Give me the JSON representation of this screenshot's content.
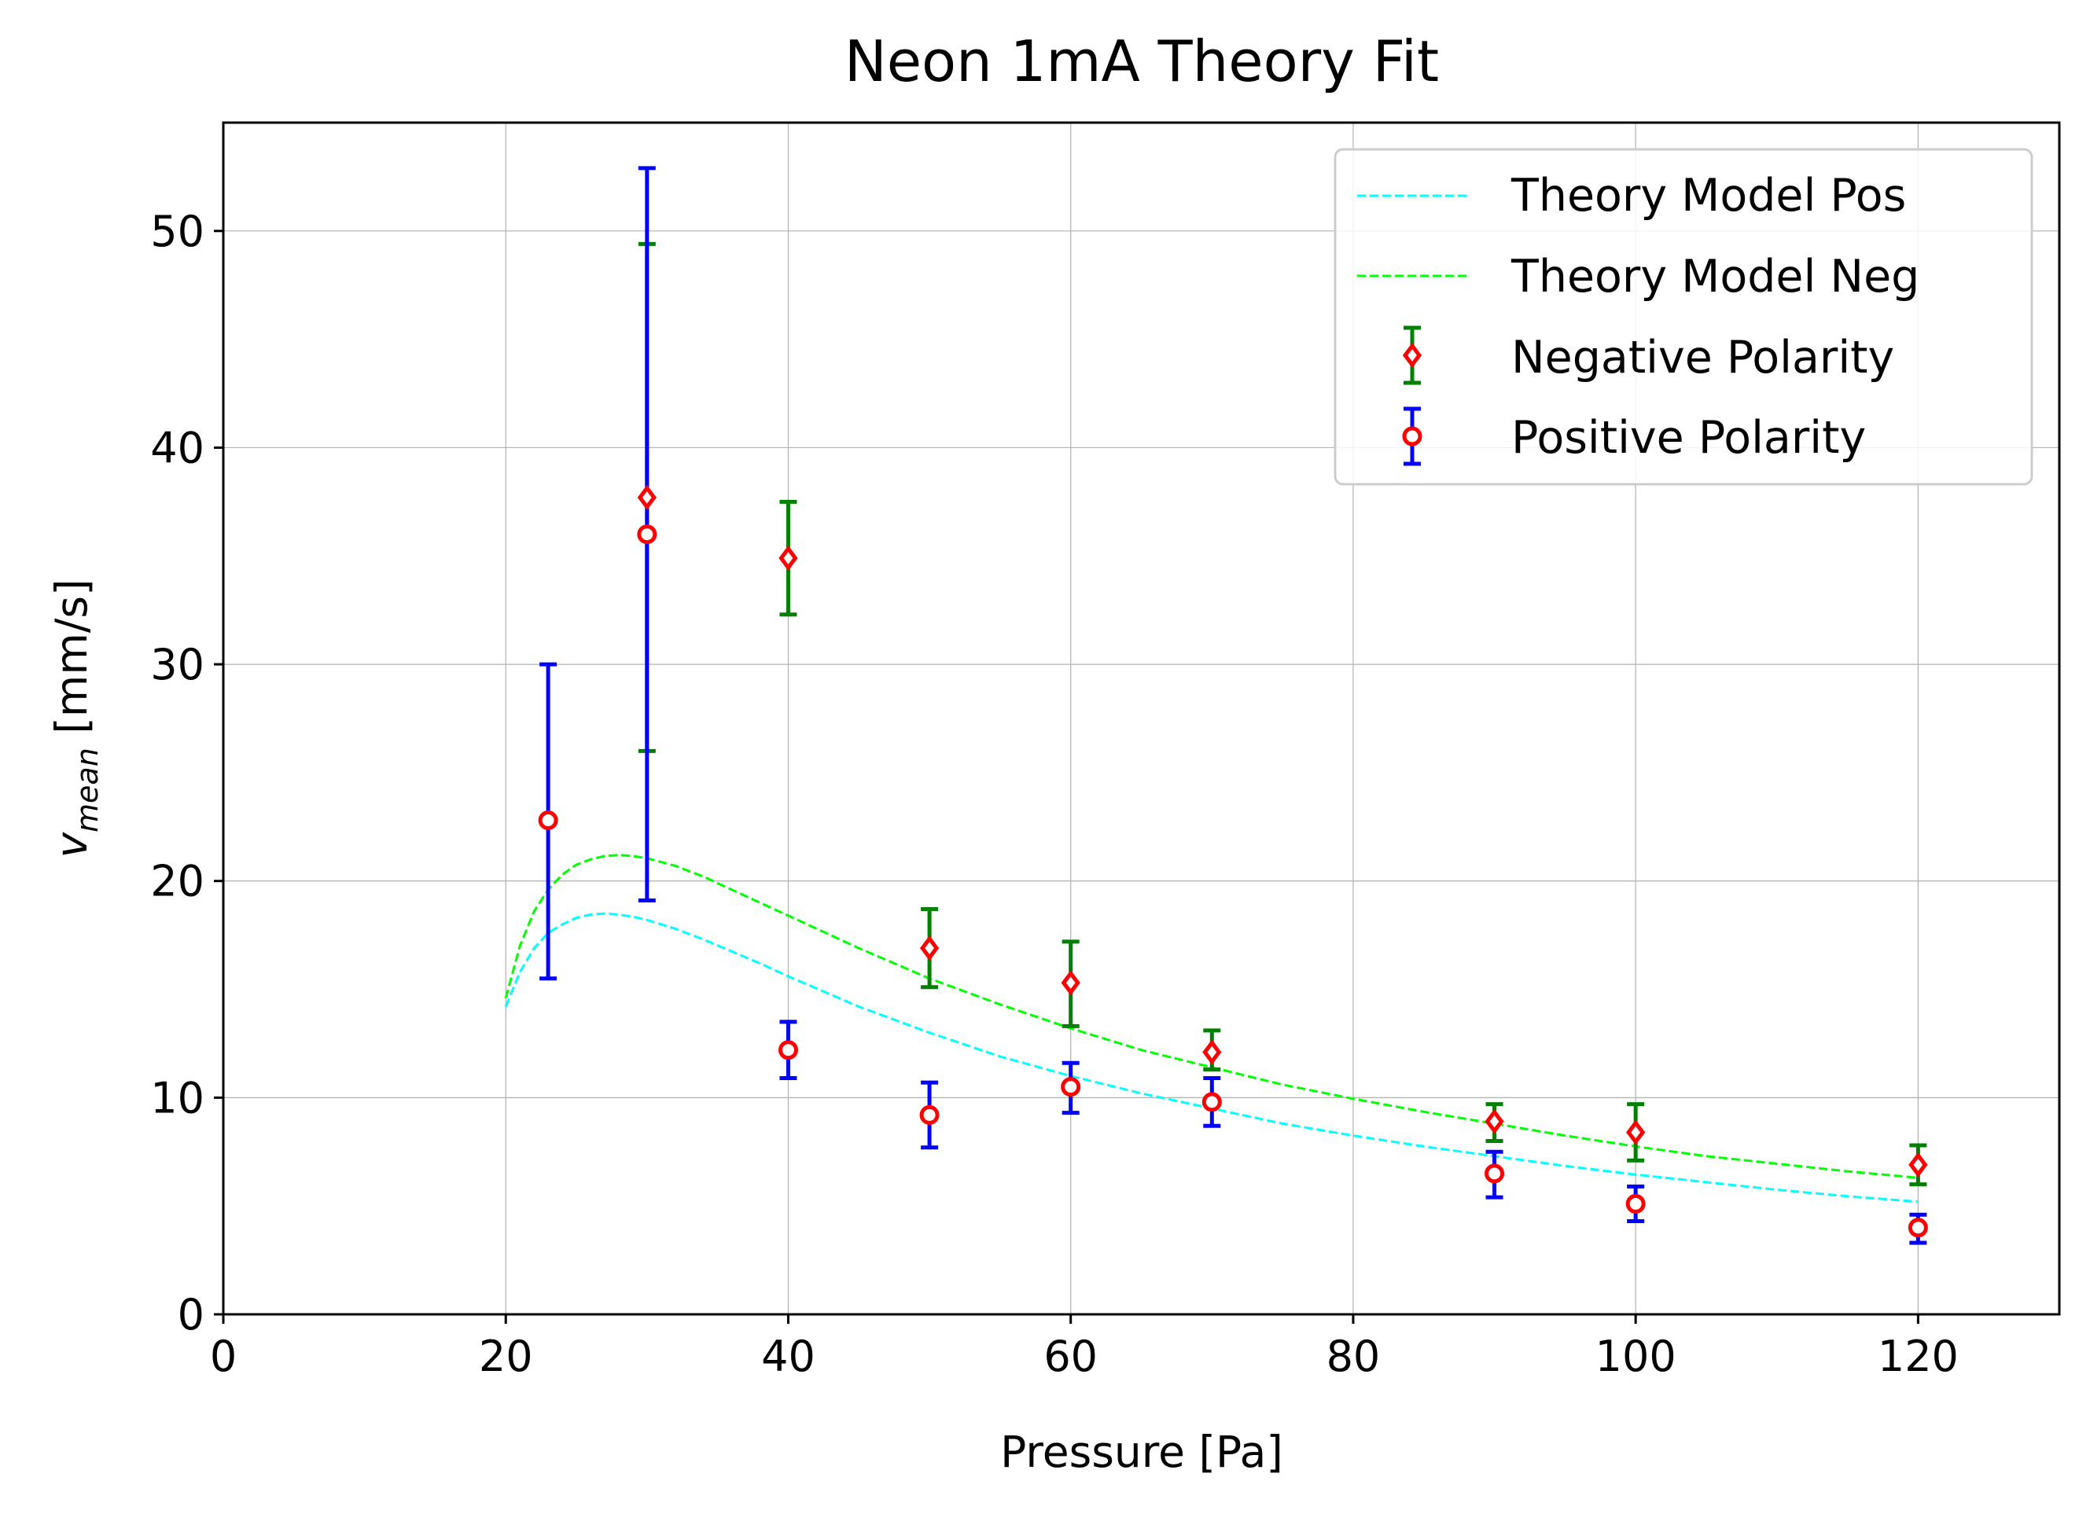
{
  "chart_data": {
    "type": "scatter",
    "title": "Neon 1mA Theory Fit",
    "xlabel": "Pressure [Pa]",
    "ylabel_main": "v",
    "ylabel_sub": "mean",
    "ylabel_unit": " [mm/s]",
    "xlim": [
      0,
      130
    ],
    "ylim": [
      0,
      55
    ],
    "xticks": [
      0,
      20,
      40,
      60,
      80,
      100,
      120
    ],
    "yticks": [
      0,
      10,
      20,
      30,
      40,
      50
    ],
    "grid": true,
    "legend_position": "top-right",
    "colors": {
      "theory_pos": "#00ffff",
      "theory_neg": "#00ff00",
      "neg_errorbar": "#008000",
      "pos_errorbar": "#0000ff",
      "marker": "#ff0000"
    },
    "theory_models": [
      {
        "name": "Theory Model Pos",
        "x": [
          20,
          21,
          22,
          23,
          24,
          25,
          26,
          27,
          28,
          29,
          30,
          32,
          34,
          36,
          38,
          40,
          45,
          50,
          55,
          60,
          65,
          70,
          75,
          80,
          85,
          90,
          95,
          100,
          105,
          110,
          115,
          120
        ],
        "y": [
          14.2,
          15.8,
          16.9,
          17.6,
          18.0,
          18.3,
          18.45,
          18.5,
          18.45,
          18.35,
          18.2,
          17.8,
          17.3,
          16.75,
          16.2,
          15.6,
          14.2,
          13.0,
          11.9,
          11.0,
          10.2,
          9.5,
          8.8,
          8.25,
          7.75,
          7.3,
          6.85,
          6.45,
          6.1,
          5.75,
          5.45,
          5.2
        ]
      },
      {
        "name": "Theory Model Neg",
        "x": [
          20,
          21,
          22,
          23,
          24,
          25,
          26,
          27,
          28,
          29,
          30,
          32,
          34,
          36,
          38,
          40,
          45,
          50,
          55,
          60,
          65,
          70,
          75,
          80,
          85,
          90,
          95,
          100,
          105,
          110,
          115,
          120
        ],
        "y": [
          14.6,
          17.0,
          18.6,
          19.6,
          20.3,
          20.75,
          21.0,
          21.15,
          21.2,
          21.15,
          21.05,
          20.7,
          20.2,
          19.6,
          19.0,
          18.4,
          16.9,
          15.5,
          14.3,
          13.2,
          12.2,
          11.4,
          10.6,
          9.95,
          9.35,
          8.8,
          8.25,
          7.75,
          7.3,
          6.95,
          6.6,
          6.3
        ]
      }
    ],
    "series": [
      {
        "name": "Negative Polarity",
        "marker": "diamond",
        "x": [
          30,
          40,
          50,
          60,
          70,
          90,
          100,
          120
        ],
        "y": [
          37.7,
          34.9,
          16.9,
          15.3,
          12.1,
          8.9,
          8.4,
          6.9
        ],
        "yerr_low": [
          26.0,
          32.3,
          15.1,
          13.3,
          11.3,
          8.0,
          7.1,
          6.0
        ],
        "yerr_high": [
          49.4,
          37.5,
          18.7,
          17.2,
          13.1,
          9.7,
          9.7,
          7.8
        ]
      },
      {
        "name": "Positive Polarity",
        "marker": "circle",
        "x": [
          23,
          30,
          40,
          50,
          60,
          70,
          90,
          100,
          120
        ],
        "y": [
          22.8,
          36.0,
          12.2,
          9.2,
          10.5,
          9.8,
          6.5,
          5.1,
          4.0
        ],
        "yerr_low": [
          15.5,
          19.1,
          10.9,
          7.7,
          9.3,
          8.7,
          5.4,
          4.3,
          3.3
        ],
        "yerr_high": [
          30.0,
          52.9,
          13.5,
          10.7,
          11.6,
          10.9,
          7.5,
          5.9,
          4.6
        ]
      }
    ]
  }
}
